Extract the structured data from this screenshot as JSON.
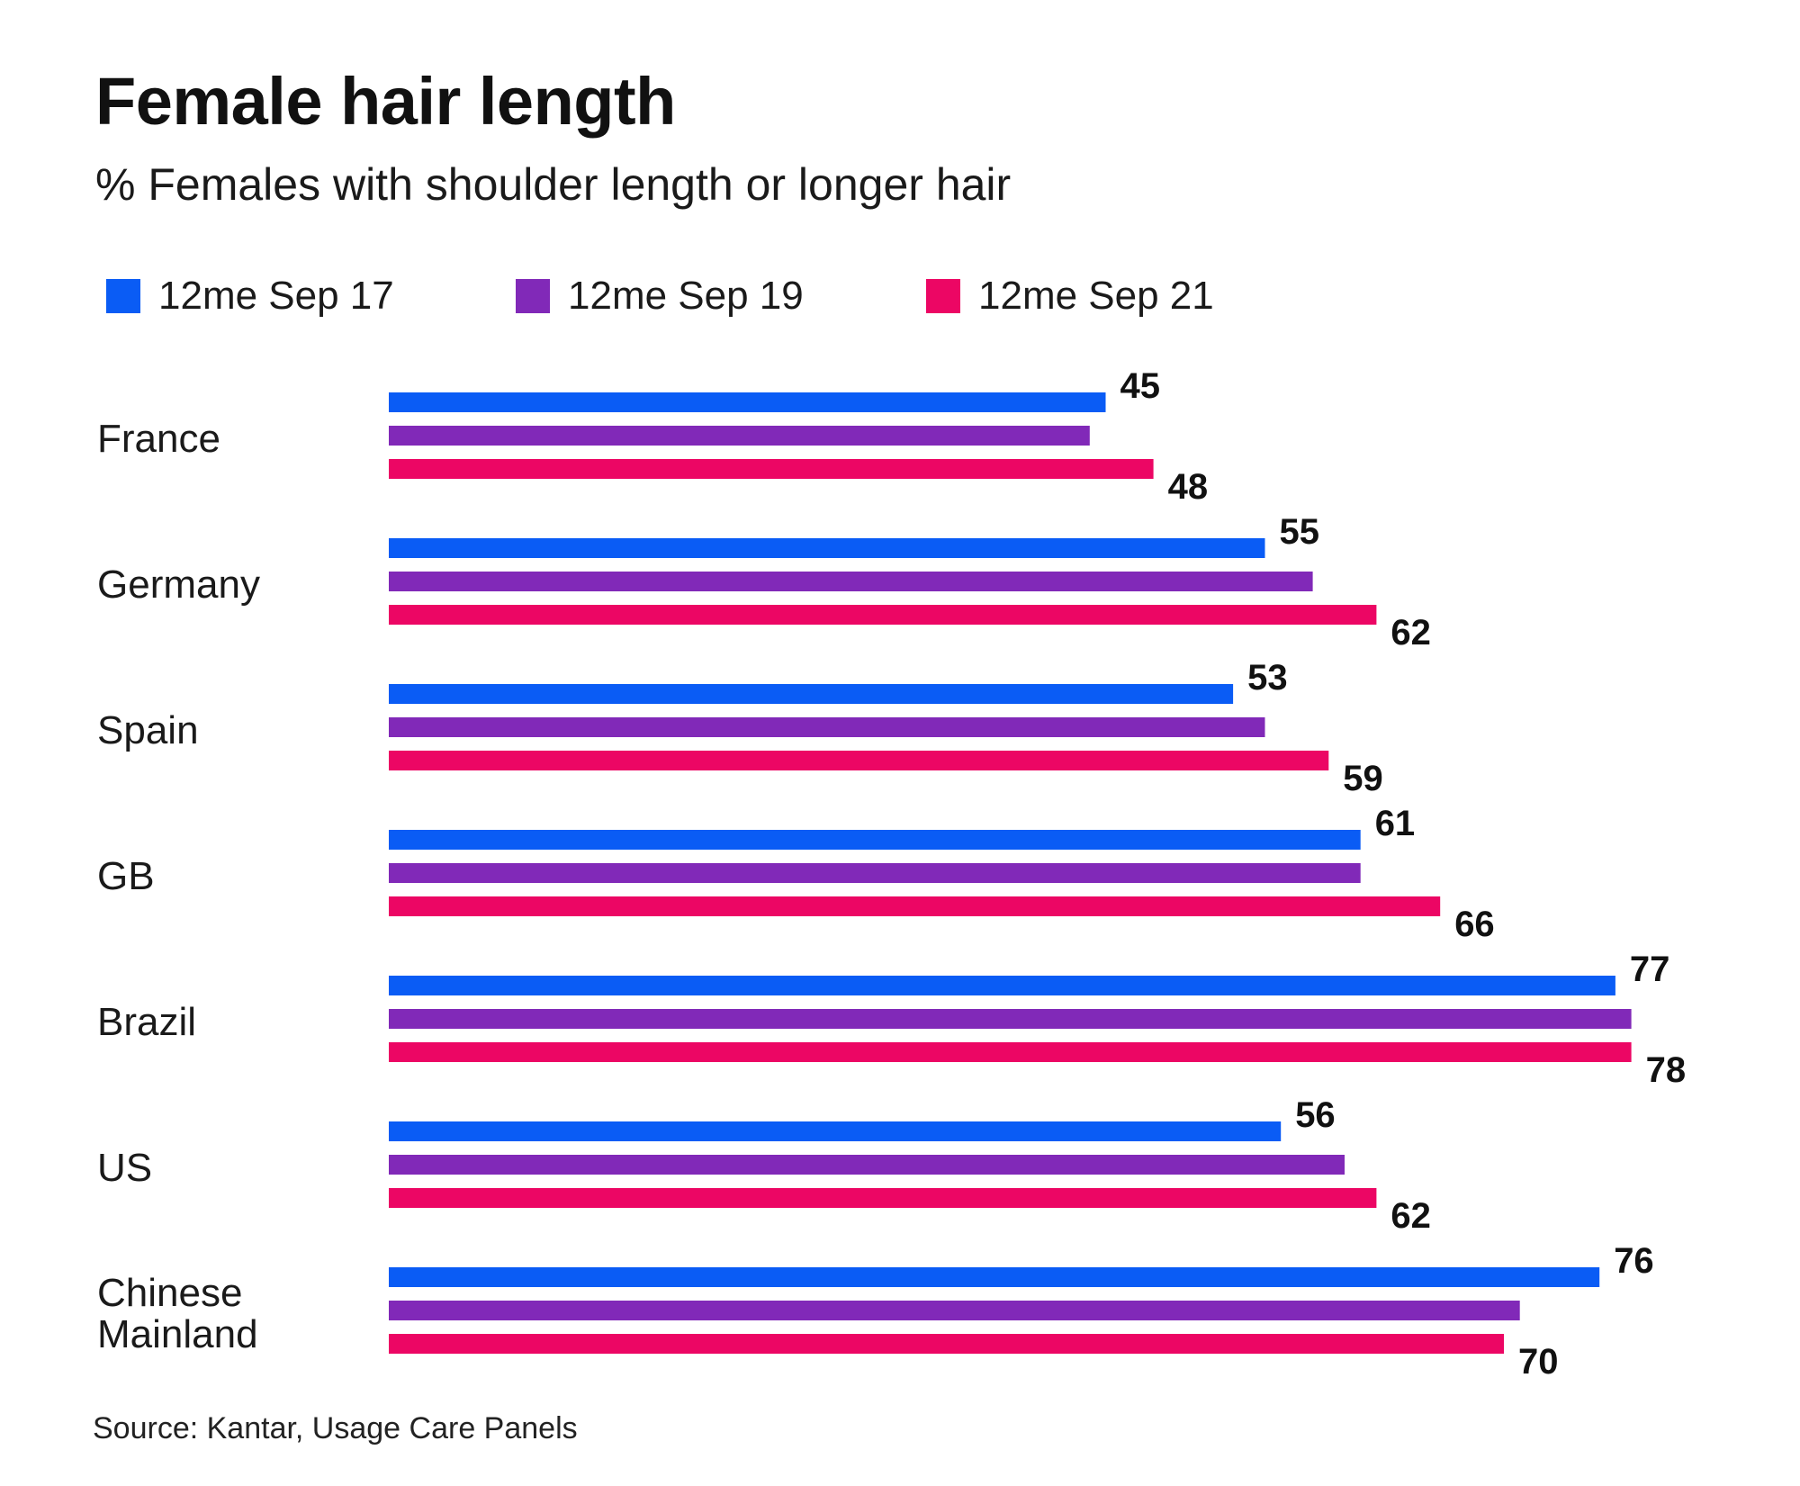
{
  "title": "Female hair length",
  "subtitle": "% Females with shoulder length or longer hair",
  "source": "Source: Kantar, Usage Care Panels",
  "colors": {
    "series_1": "#0a5cf5",
    "series_2": "#8129b8",
    "series_3": "#ec0664"
  },
  "chart_data": {
    "type": "bar",
    "orientation": "horizontal",
    "categories": [
      "France",
      "Germany",
      "Spain",
      "GB",
      "Brazil",
      "US",
      "Chinese Mainland"
    ],
    "series": [
      {
        "name": "12me Sep 17",
        "values": [
          45,
          55,
          53,
          61,
          77,
          56,
          76
        ]
      },
      {
        "name": "12me Sep 19",
        "values": [
          44,
          58,
          55,
          61,
          78,
          60,
          71
        ]
      },
      {
        "name": "12me Sep 21",
        "values": [
          48,
          62,
          59,
          66,
          78,
          62,
          70
        ]
      }
    ],
    "data_labels": {
      "12me Sep 17": [
        "45",
        "55",
        "53",
        "61",
        "77",
        "56",
        "76"
      ],
      "12me Sep 21": [
        "48",
        "62",
        "59",
        "66",
        "78",
        "62",
        "70"
      ]
    },
    "legend_position": "top-left",
    "grid": false
  }
}
